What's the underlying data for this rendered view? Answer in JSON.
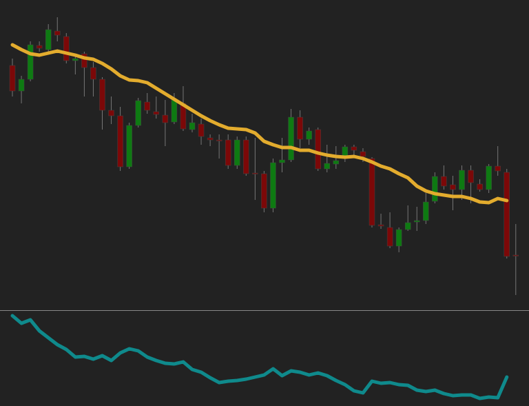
{
  "chart_data": [
    {
      "type": "candlestick",
      "up_color": "#0e7a12",
      "down_color": "#7c0808",
      "ylim": [
        0,
        450
      ],
      "open": [
        355,
        318,
        335,
        384,
        378,
        405,
        397,
        362,
        372,
        352,
        335,
        290,
        282,
        208,
        268,
        302,
        288,
        283,
        273,
        300,
        262,
        270,
        250,
        247,
        247,
        210,
        247,
        199,
        198,
        148,
        214,
        218,
        280,
        248,
        262,
        205,
        212,
        224,
        237,
        230,
        220,
        124,
        120,
        93,
        117,
        128,
        130,
        158,
        194,
        182,
        175,
        203,
        183,
        175,
        209,
        200,
        80
      ],
      "high": [
        365,
        340,
        390,
        390,
        415,
        425,
        402,
        370,
        375,
        360,
        338,
        310,
        295,
        272,
        308,
        315,
        310,
        305,
        315,
        325,
        285,
        278,
        255,
        255,
        255,
        252,
        252,
        250,
        202,
        220,
        250,
        292,
        290,
        265,
        265,
        240,
        238,
        240,
        240,
        235,
        222,
        140,
        142,
        120,
        152,
        150,
        170,
        200,
        210,
        195,
        210,
        210,
        190,
        212,
        238,
        205,
        125
      ],
      "low": [
        310,
        300,
        332,
        375,
        375,
        390,
        358,
        342,
        310,
        310,
        262,
        270,
        202,
        205,
        265,
        285,
        278,
        238,
        270,
        260,
        258,
        240,
        238,
        220,
        205,
        205,
        195,
        160,
        142,
        142,
        200,
        215,
        235,
        240,
        202,
        200,
        205,
        215,
        225,
        215,
        120,
        118,
        90,
        84,
        115,
        115,
        125,
        155,
        175,
        145,
        160,
        155,
        172,
        170,
        195,
        75,
        22
      ],
      "close": [
        318,
        335,
        385,
        380,
        407,
        399,
        362,
        365,
        352,
        335,
        290,
        282,
        208,
        268,
        304,
        290,
        284,
        272,
        305,
        263,
        272,
        252,
        247,
        246,
        210,
        247,
        198,
        198,
        148,
        214,
        218,
        280,
        248,
        260,
        205,
        213,
        217,
        237,
        232,
        223,
        123,
        122,
        93,
        117,
        127,
        130,
        157,
        194,
        180,
        175,
        203,
        185,
        175,
        209,
        202,
        78,
        79
      ],
      "series": [
        {
          "color": "#e3ac2e",
          "values": [
            385,
            378,
            372,
            370,
            373,
            376,
            373,
            370,
            366,
            364,
            358,
            350,
            340,
            334,
            333,
            330,
            322,
            314,
            306,
            298,
            290,
            282,
            275,
            269,
            264,
            263,
            262,
            257,
            245,
            240,
            236,
            236,
            232,
            232,
            228,
            225,
            223,
            222,
            223,
            220,
            215,
            209,
            205,
            198,
            192,
            180,
            173,
            169,
            167,
            165,
            165,
            162,
            157,
            156,
            162,
            159,
            null
          ]
        }
      ]
    },
    {
      "type": "line",
      "ylim": [
        0,
        138
      ],
      "series": [
        {
          "color": "#0f8a8c",
          "values": [
            131,
            120,
            125,
            109,
            99,
            89,
            82,
            71,
            72,
            68,
            73,
            66,
            77,
            83,
            80,
            71,
            66,
            62,
            61,
            64,
            53,
            49,
            41,
            34,
            36,
            37,
            39,
            42,
            45,
            54,
            44,
            51,
            49,
            45,
            48,
            44,
            37,
            31,
            22,
            19,
            36,
            33,
            34,
            31,
            30,
            23,
            21,
            23,
            18,
            15,
            16,
            16,
            11,
            13,
            12,
            42,
            null
          ]
        }
      ]
    }
  ]
}
